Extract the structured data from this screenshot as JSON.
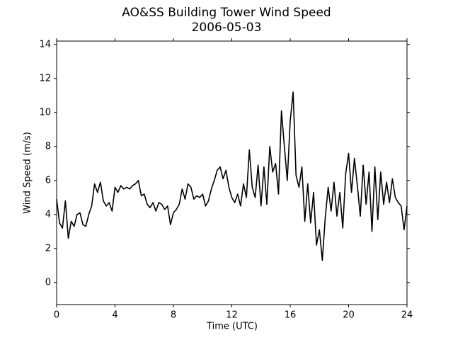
{
  "chart_data": {
    "type": "line",
    "title": "AO&SS Building Tower Wind Speed",
    "subtitle": "2006-05-03",
    "x_label": "Time (UTC)",
    "y_label": "Wind Speed (m/s)",
    "x": [
      0,
      0.2,
      0.4,
      0.6,
      0.8,
      1,
      1.2,
      1.4,
      1.6,
      1.8,
      2,
      2.2,
      2.4,
      2.6,
      2.8,
      3,
      3.2,
      3.4,
      3.6,
      3.8,
      4,
      4.2,
      4.4,
      4.6,
      4.8,
      5,
      5.2,
      5.4,
      5.6,
      5.8,
      6,
      6.2,
      6.4,
      6.6,
      6.8,
      7,
      7.2,
      7.4,
      7.6,
      7.8,
      8,
      8.2,
      8.4,
      8.6,
      8.8,
      9,
      9.2,
      9.4,
      9.6,
      9.8,
      10,
      10.2,
      10.4,
      10.6,
      10.8,
      11,
      11.2,
      11.4,
      11.6,
      11.8,
      12,
      12.2,
      12.4,
      12.6,
      12.8,
      13,
      13.2,
      13.4,
      13.6,
      13.8,
      14,
      14.2,
      14.4,
      14.6,
      14.8,
      15,
      15.2,
      15.4,
      15.6,
      15.8,
      16,
      16.2,
      16.4,
      16.6,
      16.8,
      17,
      17.2,
      17.4,
      17.6,
      17.8,
      18,
      18.2,
      18.4,
      18.6,
      18.8,
      19,
      19.2,
      19.4,
      19.6,
      19.8,
      20,
      20.2,
      20.4,
      20.6,
      20.8,
      21,
      21.2,
      21.4,
      21.6,
      21.8,
      22,
      22.2,
      22.4,
      22.6,
      22.8,
      23,
      23.2,
      23.4,
      23.6,
      23.8,
      24
    ],
    "series": [
      {
        "color": "#000000",
        "values": [
          4.9,
          3.5,
          3.2,
          4.8,
          2.6,
          3.6,
          3.3,
          4.0,
          4.1,
          3.4,
          3.3,
          4.0,
          4.5,
          5.8,
          5.3,
          5.9,
          4.8,
          4.5,
          4.7,
          4.2,
          5.6,
          5.3,
          5.7,
          5.5,
          5.6,
          5.5,
          5.7,
          5.8,
          6.0,
          5.1,
          5.2,
          4.6,
          4.4,
          4.7,
          4.2,
          4.7,
          4.6,
          4.3,
          4.5,
          3.4,
          4.1,
          4.3,
          4.6,
          5.5,
          4.9,
          5.8,
          5.6,
          4.9,
          5.1,
          5.0,
          5.2,
          4.5,
          4.8,
          5.5,
          6.0,
          6.6,
          6.8,
          6.1,
          6.6,
          5.6,
          5.0,
          4.7,
          5.2,
          4.5,
          5.8,
          5.0,
          7.8,
          5.6,
          5.0,
          6.9,
          4.5,
          6.8,
          4.6,
          8.0,
          6.5,
          7.0,
          5.2,
          10.1,
          8.0,
          6.0,
          9.5,
          11.2,
          6.3,
          5.6,
          6.8,
          3.6,
          5.8,
          3.5,
          5.3,
          2.2,
          3.1,
          1.3,
          3.8,
          5.6,
          4.2,
          5.9,
          3.9,
          5.3,
          3.2,
          6.4,
          7.6,
          5.3,
          7.3,
          5.7,
          3.9,
          6.9,
          4.6,
          6.5,
          3.0,
          6.8,
          3.7,
          6.5,
          4.6,
          5.9,
          4.7,
          6.1,
          5.0,
          4.7,
          4.5,
          3.1,
          4.5
        ]
      }
    ],
    "xlim": [
      0,
      24
    ],
    "xticks": [
      0,
      4,
      8,
      12,
      16,
      20,
      24
    ],
    "ylim": [
      -1.3,
      14.2
    ],
    "yticks": [
      0,
      2,
      4,
      6,
      8,
      10,
      12,
      14
    ],
    "grid": false
  }
}
